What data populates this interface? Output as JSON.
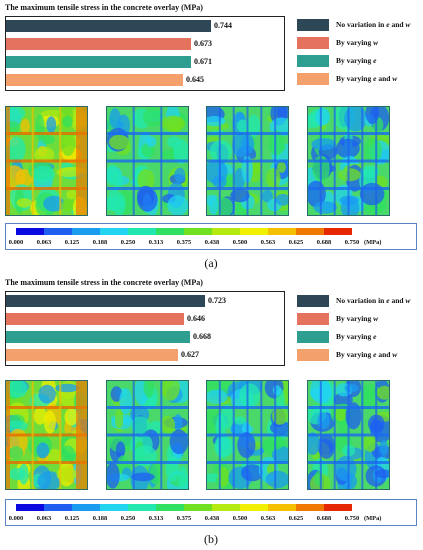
{
  "chart_data": [
    {
      "type": "bar",
      "orientation": "horizontal",
      "title": "The maximum tensile stress in the concrete overlay (MPa)",
      "categories": [
        "No variation in e and w",
        "By varying w",
        "By varying e",
        "By varying e and w"
      ],
      "values": [
        0.744,
        0.673,
        0.671,
        0.645
      ],
      "value_labels": [
        "0.744",
        "0.673",
        "0.671",
        "0.645"
      ],
      "colors": [
        "#2e4756",
        "#e4725e",
        "#2e9e91",
        "#f4a06c"
      ],
      "xlim": [
        0,
        1.0
      ],
      "legend": "right",
      "caption": "(a)"
    },
    {
      "type": "bar",
      "orientation": "horizontal",
      "title": "The maximum tensile stress in the concrete overlay (MPa)",
      "categories": [
        "No variation in e and w",
        "By varying w",
        "By varying e",
        "By varying e and w"
      ],
      "values": [
        0.723,
        0.646,
        0.668,
        0.627
      ],
      "value_labels": [
        "0.723",
        "0.646",
        "0.668",
        "0.627"
      ],
      "colors": [
        "#2e4756",
        "#e4725e",
        "#2e9e91",
        "#f4a06c"
      ],
      "xlim": [
        0,
        1.0
      ],
      "legend": "right",
      "caption": "(b)"
    }
  ],
  "legend_text": [
    {
      "before": "No variation in ",
      "i1": "e",
      "mid": " and ",
      "i2": "w"
    },
    {
      "before": "By varying ",
      "i1": "w",
      "mid": "",
      "i2": ""
    },
    {
      "before": "By varying ",
      "i1": "e",
      "mid": "",
      "i2": ""
    },
    {
      "before": "By varying ",
      "i1": "e",
      "mid": " and ",
      "i2": "w"
    }
  ],
  "colorbar": {
    "ticks": [
      "0.000",
      "0.063",
      "0.125",
      "0.188",
      "0.250",
      "0.313",
      "0.375",
      "0.438",
      "0.500",
      "0.563",
      "0.625",
      "0.688",
      "0.750"
    ],
    "unit": "(MPa)",
    "colors": [
      "#0a0ae0",
      "#1e5ff0",
      "#1a9cf0",
      "#22d4f0",
      "#22e8b0",
      "#30e060",
      "#70e020",
      "#b4ea10",
      "#f0f000",
      "#f4c000",
      "#f07800",
      "#e62800"
    ]
  },
  "contour_maps": {
    "a": [
      "map-a-no-variation",
      "map-a-varying-w",
      "map-a-varying-e",
      "map-a-varying-e-and-w"
    ],
    "b": [
      "map-b-no-variation",
      "map-b-varying-w",
      "map-b-varying-e",
      "map-b-varying-e-and-w"
    ]
  }
}
